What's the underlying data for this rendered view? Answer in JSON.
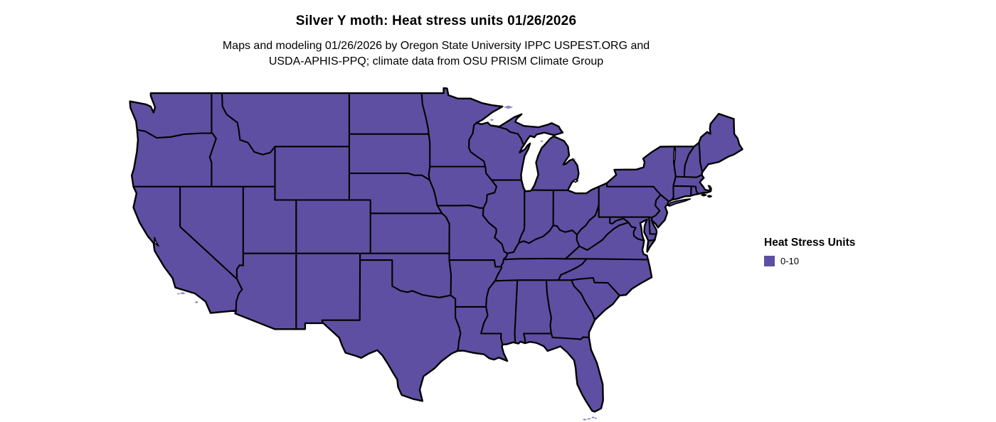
{
  "page": {
    "background": "#ffffff"
  },
  "header": {
    "title": "Silver Y moth: Heat stress units 01/26/2026",
    "subtitle_line1": "Maps and modeling 01/26/2026 by Oregon State University IPPC USPEST.ORG and",
    "subtitle_line2": "USDA-APHIS-PPQ; climate data from OSU PRISM Climate Group"
  },
  "legend": {
    "title": "Heat Stress Units",
    "items": [
      {
        "label": "0-10",
        "color": "#5e4fa2"
      }
    ]
  },
  "map": {
    "region": "Contiguous United States",
    "fill_color": "#5e4fa2",
    "island_fill_color": "#8c84c8",
    "border_color": "#000000",
    "water_color": "#ffffff"
  },
  "chart_data": {
    "type": "choropleth-map",
    "title": "Silver Y moth: Heat stress units 01/26/2026",
    "region": "Contiguous United States (lower 48 states)",
    "legend_title": "Heat Stress Units",
    "classes": [
      {
        "label": "0-10",
        "color": "#5e4fa2"
      }
    ],
    "values": "all states shown in class 0-10"
  }
}
